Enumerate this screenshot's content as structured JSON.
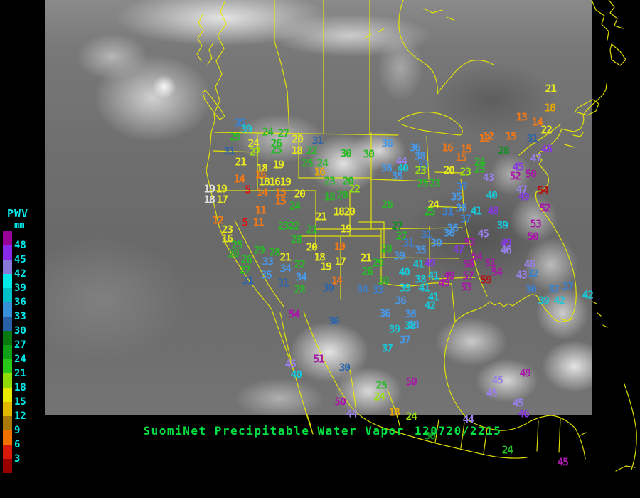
{
  "legend": {
    "title": "PWV",
    "unit": "mm",
    "labels": [
      "48",
      "45",
      "42",
      "39",
      "36",
      "33",
      "30",
      "27",
      "24",
      "21",
      "18",
      "15",
      "12",
      "9",
      "6",
      "3"
    ],
    "swatches": [
      "#980098",
      "#8828E8",
      "#8878D8",
      "#00E8E8",
      "#00C0C8",
      "#3890D8",
      "#2860A8",
      "#087810",
      "#10A018",
      "#28C818",
      "#90DC08",
      "#E8E800",
      "#E0B800",
      "#A87808",
      "#F07000",
      "#D81808",
      "#980000"
    ],
    "label_color": "#00E8E8"
  },
  "footer": {
    "title": "SuomiNet Precipitable Water Vapor",
    "datetime": "120720/2215",
    "color": "#00E040"
  },
  "map": {
    "outline_color": "#E8E800"
  },
  "palette": {
    "white": "#E0E0E0",
    "red": "#E01010",
    "orange": "#F07818",
    "gold": "#E8A800",
    "yellow": "#E8E820",
    "chartreuse": "#98E010",
    "green": "#28B828",
    "darkgreen": "#109020",
    "blue": "#3C80D0",
    "steelblue": "#2E64A8",
    "lightblue": "#4898E8",
    "cyan": "#18C8D8",
    "violet": "#9880E8",
    "purple": "#8838E0",
    "magenta": "#A818A8",
    "darkred": "#B01818"
  },
  "stations": [
    [
      "35",
      337,
      173,
      "blue"
    ],
    [
      "39",
      346,
      182,
      "cyan"
    ],
    [
      "29",
      330,
      193,
      "green"
    ],
    [
      "31",
      322,
      213,
      "steelblue"
    ],
    [
      "24",
      356,
      202,
      "yellow"
    ],
    [
      "27",
      358,
      214,
      "chartreuse"
    ],
    [
      "21",
      338,
      228,
      "yellow"
    ],
    [
      "24",
      376,
      186,
      "green"
    ],
    [
      "27",
      398,
      188,
      "green"
    ],
    [
      "26",
      388,
      202,
      "green"
    ],
    [
      "25",
      388,
      211,
      "green"
    ],
    [
      "20",
      418,
      196,
      "yellow"
    ],
    [
      "31",
      446,
      198,
      "steelblue"
    ],
    [
      "18",
      417,
      212,
      "yellow"
    ],
    [
      "22",
      438,
      212,
      "green"
    ],
    [
      "30",
      486,
      216,
      "green"
    ],
    [
      "25",
      432,
      230,
      "green"
    ],
    [
      "24",
      453,
      230,
      "green"
    ],
    [
      "16",
      449,
      242,
      "gold"
    ],
    [
      "23",
      463,
      255,
      "green"
    ],
    [
      "20",
      489,
      255,
      "green"
    ],
    [
      "18",
      368,
      237,
      "yellow"
    ],
    [
      "19",
      391,
      232,
      "yellow"
    ],
    [
      "16",
      366,
      246,
      "orange"
    ],
    [
      "14",
      336,
      252,
      "orange"
    ],
    [
      "18",
      371,
      256,
      "yellow"
    ],
    [
      "16",
      386,
      256,
      "yellow"
    ],
    [
      "19",
      401,
      256,
      "yellow"
    ],
    [
      "19",
      294,
      266,
      "white"
    ],
    [
      "19",
      311,
      266,
      "yellow"
    ],
    [
      "5",
      348,
      267,
      "red"
    ],
    [
      "14",
      368,
      271,
      "orange"
    ],
    [
      "15",
      394,
      271,
      "orange"
    ],
    [
      "20",
      421,
      273,
      "yellow"
    ],
    [
      "18",
      294,
      281,
      "white"
    ],
    [
      "17",
      312,
      281,
      "yellow"
    ],
    [
      "18",
      463,
      277,
      "green"
    ],
    [
      "20",
      481,
      275,
      "green"
    ],
    [
      "22",
      498,
      266,
      "chartreuse"
    ],
    [
      "30",
      518,
      217,
      "green"
    ],
    [
      "12",
      306,
      310,
      "orange"
    ],
    [
      "11",
      366,
      296,
      "orange"
    ],
    [
      "5",
      344,
      313,
      "red"
    ],
    [
      "11",
      363,
      313,
      "orange"
    ],
    [
      "23",
      319,
      323,
      "yellow"
    ],
    [
      "16",
      319,
      336,
      "yellow"
    ],
    [
      "25",
      333,
      345,
      "green"
    ],
    [
      "20",
      328,
      357,
      "green"
    ],
    [
      "26",
      346,
      365,
      "green"
    ],
    [
      "27",
      344,
      380,
      "green"
    ],
    [
      "31",
      348,
      395,
      "steelblue"
    ],
    [
      "29",
      364,
      352,
      "green"
    ],
    [
      "28",
      386,
      355,
      "green"
    ],
    [
      "33",
      376,
      368,
      "lightblue"
    ],
    [
      "35",
      374,
      387,
      "lightblue"
    ],
    [
      "23",
      398,
      318,
      "green"
    ],
    [
      "22",
      413,
      318,
      "green"
    ],
    [
      "24",
      414,
      290,
      "green"
    ],
    [
      "15",
      394,
      283,
      "orange"
    ],
    [
      "21",
      451,
      305,
      "yellow"
    ],
    [
      "18",
      476,
      298,
      "yellow"
    ],
    [
      "20",
      491,
      298,
      "yellow"
    ],
    [
      "19",
      486,
      322,
      "yellow"
    ],
    [
      "21",
      438,
      323,
      "green"
    ],
    [
      "28",
      416,
      337,
      "green"
    ],
    [
      "20",
      438,
      348,
      "yellow"
    ],
    [
      "10",
      477,
      347,
      "orange"
    ],
    [
      "18",
      449,
      362,
      "yellow"
    ],
    [
      "21",
      401,
      362,
      "yellow"
    ],
    [
      "22",
      421,
      372,
      "green"
    ],
    [
      "34",
      401,
      378,
      "lightblue"
    ],
    [
      "19",
      458,
      375,
      "yellow"
    ],
    [
      "17",
      478,
      368,
      "yellow"
    ],
    [
      "34",
      423,
      390,
      "lightblue"
    ],
    [
      "31",
      398,
      398,
      "steelblue"
    ],
    [
      "14",
      473,
      395,
      "orange"
    ],
    [
      "30",
      461,
      405,
      "steelblue"
    ],
    [
      "28",
      421,
      407,
      "green"
    ],
    [
      "36",
      544,
      202,
      "lightblue"
    ],
    [
      "36",
      583,
      208,
      "lightblue"
    ],
    [
      "38",
      590,
      220,
      "lightblue"
    ],
    [
      "44",
      564,
      227,
      "violet"
    ],
    [
      "40",
      566,
      237,
      "cyan"
    ],
    [
      "36",
      543,
      237,
      "lightblue"
    ],
    [
      "35",
      558,
      248,
      "lightblue"
    ],
    [
      "33",
      594,
      232,
      "blue"
    ],
    [
      "23",
      591,
      240,
      "chartreuse"
    ],
    [
      "20",
      631,
      240,
      "yellow"
    ],
    [
      "23",
      654,
      242,
      "chartreuse"
    ],
    [
      "16",
      629,
      208,
      "orange"
    ],
    [
      "15",
      655,
      210,
      "orange"
    ],
    [
      "15",
      648,
      222,
      "orange"
    ],
    [
      "12",
      681,
      195,
      "orange"
    ],
    [
      "24",
      674,
      228,
      "green"
    ],
    [
      "25",
      674,
      238,
      "green"
    ],
    [
      "43",
      686,
      250,
      "violet"
    ],
    [
      "25",
      594,
      258,
      "green"
    ],
    [
      "23",
      611,
      258,
      "green"
    ],
    [
      "26",
      544,
      288,
      "green"
    ],
    [
      "24",
      609,
      288,
      "yellow"
    ],
    [
      "25",
      604,
      298,
      "green"
    ],
    [
      "31",
      629,
      298,
      "blue"
    ],
    [
      "36",
      648,
      293,
      "lightblue"
    ],
    [
      "37",
      649,
      263,
      "blue"
    ],
    [
      "35",
      641,
      277,
      "lightblue"
    ],
    [
      "40",
      691,
      275,
      "cyan"
    ],
    [
      "41",
      669,
      297,
      "cyan"
    ],
    [
      "48",
      693,
      297,
      "purple"
    ],
    [
      "13",
      733,
      165,
      "orange"
    ],
    [
      "14",
      755,
      172,
      "orange"
    ],
    [
      "22",
      768,
      183,
      "yellow"
    ],
    [
      "12",
      686,
      192,
      "orange"
    ],
    [
      "15",
      718,
      192,
      "orange"
    ],
    [
      "31",
      748,
      195,
      "steelblue"
    ],
    [
      "46",
      768,
      210,
      "purple"
    ],
    [
      "28",
      708,
      212,
      "darkgreen"
    ],
    [
      "47",
      753,
      223,
      "violet"
    ],
    [
      "45",
      728,
      235,
      "purple"
    ],
    [
      "50",
      746,
      245,
      "magenta"
    ],
    [
      "52",
      724,
      248,
      "magenta"
    ],
    [
      "47",
      733,
      267,
      "violet"
    ],
    [
      "49",
      736,
      277,
      "purple"
    ],
    [
      "54",
      763,
      268,
      "darkred"
    ],
    [
      "52",
      766,
      293,
      "magenta"
    ],
    [
      "21",
      774,
      125,
      "yellow"
    ],
    [
      "18",
      773,
      152,
      "gold"
    ],
    [
      "37",
      654,
      308,
      "blue"
    ],
    [
      "36",
      631,
      328,
      "lightblue"
    ],
    [
      "36",
      636,
      321,
      "lightblue"
    ],
    [
      "39",
      706,
      317,
      "cyan"
    ],
    [
      "45",
      679,
      329,
      "violet"
    ],
    [
      "53",
      753,
      315,
      "magenta"
    ],
    [
      "50",
      749,
      333,
      "magenta"
    ],
    [
      "52",
      660,
      341,
      "magenta"
    ],
    [
      "47",
      644,
      351,
      "purple"
    ],
    [
      "49",
      711,
      342,
      "purple"
    ],
    [
      "46",
      711,
      352,
      "violet"
    ],
    [
      "54",
      670,
      361,
      "magenta"
    ],
    [
      "50",
      658,
      372,
      "magenta"
    ],
    [
      "51",
      689,
      370,
      "magenta"
    ],
    [
      "54",
      698,
      383,
      "magenta"
    ],
    [
      "46",
      744,
      372,
      "violet"
    ],
    [
      "43",
      733,
      387,
      "violet"
    ],
    [
      "32",
      749,
      385,
      "blue"
    ],
    [
      "57",
      658,
      388,
      "magenta"
    ],
    [
      "59",
      683,
      394,
      "darkred"
    ],
    [
      "49",
      631,
      388,
      "magenta"
    ],
    [
      "49",
      624,
      398,
      "magenta"
    ],
    [
      "53",
      655,
      404,
      "magenta"
    ],
    [
      "30",
      746,
      407,
      "blue"
    ],
    [
      "32",
      778,
      407,
      "blue"
    ],
    [
      "37",
      798,
      403,
      "blue"
    ],
    [
      "39",
      764,
      423,
      "cyan"
    ],
    [
      "42",
      786,
      423,
      "cyan"
    ],
    [
      "42",
      826,
      415,
      "cyan"
    ],
    [
      "27",
      558,
      318,
      "darkgreen"
    ],
    [
      "27",
      564,
      332,
      "green"
    ],
    [
      "31",
      599,
      330,
      "blue"
    ],
    [
      "31",
      574,
      342,
      "blue"
    ],
    [
      "30",
      613,
      342,
      "lightblue"
    ],
    [
      "35",
      591,
      352,
      "lightblue"
    ],
    [
      "28",
      543,
      350,
      "green"
    ],
    [
      "39",
      561,
      360,
      "lightblue"
    ],
    [
      "21",
      514,
      363,
      "yellow"
    ],
    [
      "29",
      531,
      370,
      "green"
    ],
    [
      "26",
      516,
      382,
      "green"
    ],
    [
      "30",
      539,
      395,
      "green"
    ],
    [
      "34",
      509,
      407,
      "blue"
    ],
    [
      "33",
      531,
      408,
      "blue"
    ],
    [
      "40",
      568,
      383,
      "cyan"
    ],
    [
      "41",
      588,
      372,
      "cyan"
    ],
    [
      "49",
      604,
      370,
      "purple"
    ],
    [
      "38",
      591,
      393,
      "cyan"
    ],
    [
      "41",
      609,
      388,
      "cyan"
    ],
    [
      "39",
      569,
      405,
      "cyan"
    ],
    [
      "41",
      596,
      405,
      "cyan"
    ],
    [
      "36",
      563,
      423,
      "lightblue"
    ],
    [
      "42",
      604,
      430,
      "cyan"
    ],
    [
      "41",
      609,
      418,
      "cyan"
    ],
    [
      "36",
      541,
      441,
      "lightblue"
    ],
    [
      "36",
      577,
      442,
      "lightblue"
    ],
    [
      "38",
      581,
      457,
      "lightblue"
    ],
    [
      "54",
      413,
      442,
      "magenta"
    ],
    [
      "30",
      469,
      452,
      "steelblue"
    ],
    [
      "39",
      554,
      463,
      "cyan"
    ],
    [
      "38",
      576,
      458,
      "cyan"
    ],
    [
      "37",
      569,
      478,
      "lightblue"
    ],
    [
      "37",
      544,
      490,
      "cyan"
    ],
    [
      "45",
      408,
      512,
      "violet"
    ],
    [
      "40",
      416,
      527,
      "cyan"
    ],
    [
      "51",
      448,
      505,
      "magenta"
    ],
    [
      "30",
      484,
      517,
      "steelblue"
    ],
    [
      "50",
      578,
      537,
      "magenta"
    ],
    [
      "25",
      536,
      542,
      "green"
    ],
    [
      "24",
      533,
      558,
      "chartreuse"
    ],
    [
      "50",
      478,
      565,
      "magenta"
    ],
    [
      "44",
      658,
      590,
      "violet"
    ],
    [
      "45",
      699,
      535,
      "violet"
    ],
    [
      "45",
      691,
      553,
      "violet"
    ],
    [
      "45",
      728,
      567,
      "violet"
    ],
    [
      "46",
      736,
      582,
      "purple"
    ],
    [
      "49",
      738,
      525,
      "magenta"
    ],
    [
      "30",
      604,
      613,
      "darkgreen"
    ],
    [
      "24",
      713,
      633,
      "green"
    ],
    [
      "45",
      791,
      650,
      "magenta"
    ],
    [
      "44",
      494,
      582,
      "violet"
    ],
    [
      "18",
      554,
      580,
      "gold"
    ],
    [
      "24",
      578,
      586,
      "chartreuse"
    ]
  ]
}
